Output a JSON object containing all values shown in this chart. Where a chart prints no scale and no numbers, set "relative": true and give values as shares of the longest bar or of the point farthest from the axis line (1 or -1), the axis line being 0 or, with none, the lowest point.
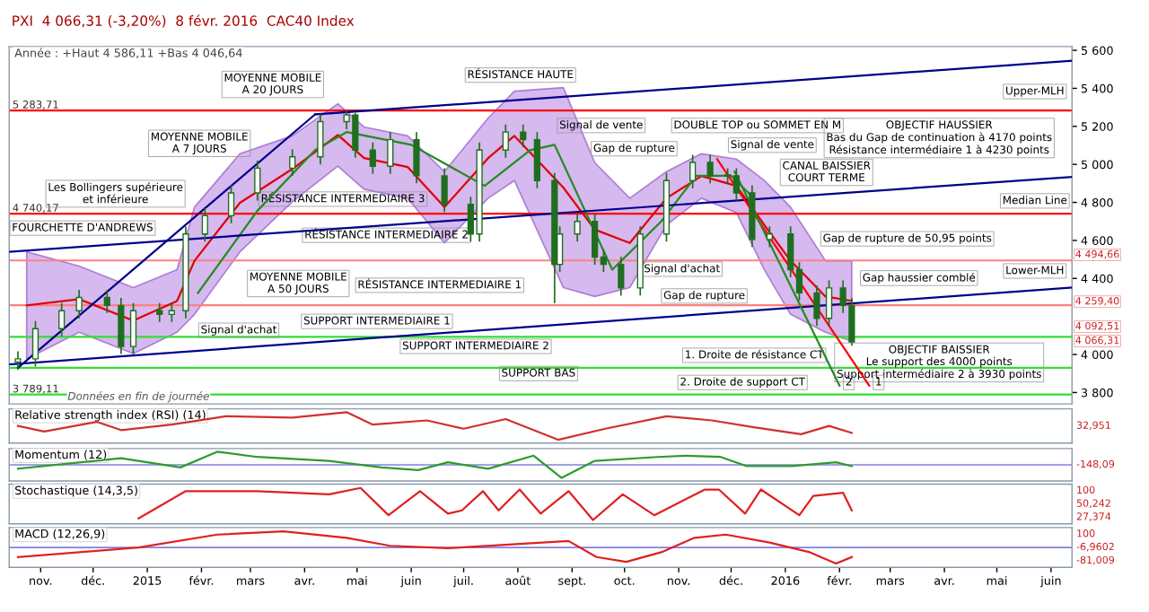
{
  "chart_data": [
    {
      "type": "candlestick",
      "title": "PXI  4 066,31 (-3,20%)  8 févr. 2016  CAC40 Index",
      "subtitle": "Année : +Haut 4 586,11 +Bas 4 046,64",
      "color": "#1f6e1f",
      "x": [
        "2014-10-19",
        "2014-10-29",
        "2014-11-13",
        "2014-11-23",
        "2014-12-09",
        "2014-12-17",
        "2014-12-24",
        "2015-01-08",
        "2015-01-15",
        "2015-01-23",
        "2015-02-03",
        "2015-02-18",
        "2015-03-05",
        "2015-03-25",
        "2015-04-10",
        "2015-04-25",
        "2015-04-30",
        "2015-05-10",
        "2015-05-20",
        "2015-06-04",
        "2015-06-20",
        "2015-07-05",
        "2015-07-10",
        "2015-07-25",
        "2015-08-04",
        "2015-08-12",
        "2015-08-22",
        "2015-08-25",
        "2015-09-04",
        "2015-09-14",
        "2015-09-19",
        "2015-09-29",
        "2015-10-10",
        "2015-10-25",
        "2015-11-09",
        "2015-11-19",
        "2015-11-29",
        "2015-12-04",
        "2015-12-13",
        "2015-12-23",
        "2016-01-04",
        "2016-01-09",
        "2016-01-19",
        "2016-01-26",
        "2016-02-03",
        "2016-02-08"
      ],
      "ohlc": [
        [
          3960,
          4017,
          3920,
          3977
        ],
        [
          3977,
          4176,
          3937,
          4136
        ],
        [
          4136,
          4270,
          4096,
          4230
        ],
        [
          4230,
          4340,
          4190,
          4300
        ],
        [
          4300,
          4340,
          4218,
          4258
        ],
        [
          4258,
          4298,
          4002,
          4042
        ],
        [
          4042,
          4270,
          4002,
          4230
        ],
        [
          4230,
          4270,
          4171,
          4211
        ],
        [
          4211,
          4270,
          4171,
          4230
        ],
        [
          4230,
          4674,
          4190,
          4634
        ],
        [
          4634,
          4770,
          4594,
          4730
        ],
        [
          4730,
          4890,
          4690,
          4850
        ],
        [
          4850,
          5020,
          4810,
          4980
        ],
        [
          4980,
          5080,
          4940,
          5040
        ],
        [
          5040,
          5265,
          5000,
          5225
        ],
        [
          5225,
          5283.71,
          5185,
          5260
        ],
        [
          5260,
          5270,
          5035,
          5075
        ],
        [
          5075,
          5115,
          4950,
          4990
        ],
        [
          4990,
          5170,
          4950,
          5130
        ],
        [
          5130,
          5170,
          4900,
          4940
        ],
        [
          4940,
          4980,
          4750,
          4790
        ],
        [
          4790,
          4830,
          4594,
          4634
        ],
        [
          4634,
          5115,
          4594,
          5075
        ],
        [
          5075,
          5210,
          5035,
          5170
        ],
        [
          5170,
          5210,
          5090,
          5130
        ],
        [
          5130,
          5170,
          4875,
          4915
        ],
        [
          4915,
          4955,
          4270,
          4474
        ],
        [
          4474,
          4674,
          4434,
          4634
        ],
        [
          4634,
          4740,
          4594,
          4700
        ],
        [
          4700,
          4740,
          4472,
          4512
        ],
        [
          4512,
          4552,
          4434,
          4474
        ],
        [
          4474,
          4514,
          4310,
          4350
        ],
        [
          4350,
          4674,
          4310,
          4634
        ],
        [
          4634,
          4955,
          4594,
          4915
        ],
        [
          4915,
          5050,
          4875,
          5010
        ],
        [
          5010,
          5050,
          4900,
          4940
        ],
        [
          4940,
          4980,
          4900,
          4940
        ],
        [
          4940,
          4980,
          4810,
          4850
        ],
        [
          4850,
          4890,
          4565,
          4605
        ],
        [
          4605,
          4674,
          4565,
          4634
        ],
        [
          4634,
          4674,
          4406,
          4446
        ],
        [
          4446,
          4486,
          4284,
          4324
        ],
        [
          4324,
          4364,
          4150,
          4190
        ],
        [
          4190,
          4390,
          4150,
          4350
        ],
        [
          4350,
          4390,
          4218,
          4258
        ],
        [
          4258,
          4298,
          4046.64,
          4066
        ]
      ],
      "series": [
        {
          "type": "line",
          "color": "#e00000",
          "x": [
            "2014-10-24",
            "2014-11-23",
            "2014-12-24",
            "2015-01-18",
            "2015-01-28",
            "2015-02-23",
            "2015-03-25",
            "2015-04-20",
            "2015-05-05",
            "2015-05-30",
            "2015-06-20",
            "2015-07-15",
            "2015-07-30",
            "2015-08-27",
            "2015-09-14",
            "2015-10-04",
            "2015-10-25",
            "2015-11-14",
            "2015-12-04",
            "2015-12-20",
            "2016-01-04",
            "2016-01-24",
            "2016-02-08"
          ],
          "values": [
            4258,
            4291,
            4178,
            4281,
            4493,
            4798,
            4976,
            5155,
            5033,
            4986,
            4775,
            5033,
            5150,
            4878,
            4657,
            4587,
            4822,
            4939,
            4887,
            4681,
            4493,
            4305,
            4282
          ],
          "lower": [
            3977,
            4117,
            4005,
            4117,
            4211,
            4540,
            4803,
            4991,
            4869,
            4822,
            4587,
            4822,
            4915,
            4352,
            4305,
            4352,
            4681,
            4822,
            4746,
            4446,
            4211,
            4117,
            4070
          ],
          "upper": [
            4540,
            4465,
            4352,
            4446,
            4775,
            5056,
            5150,
            5319,
            5197,
            5150,
            4962,
            5244,
            5385,
            5404,
            5009,
            4822,
            4962,
            5056,
            5028,
            4915,
            4775,
            4493,
            4493
          ]
        },
        {
          "type": "line",
          "color": "#228b22",
          "x": [
            "2015-01-30",
            "2015-03-05",
            "2015-04-07",
            "2015-04-25",
            "2015-06-01",
            "2015-07-13",
            "2015-08-08",
            "2015-08-22",
            "2015-09-24",
            "2015-10-22",
            "2015-11-11",
            "2015-12-01",
            "2015-12-14"
          ],
          "values": [
            4324,
            4756,
            5075,
            5170,
            5103,
            4887,
            5075,
            5103,
            4446,
            4700,
            4940,
            4940,
            4822
          ]
        },
        {
          "type": "line",
          "color": "#00008b",
          "x": [
            "2015-04-07",
            "2016-06-13"
          ],
          "values": [
            5263,
            5545
          ]
        },
        {
          "type": "line",
          "color": "#00008b",
          "x": [
            "2014-10-14",
            "2016-06-13"
          ],
          "values": [
            4540,
            4934
          ]
        },
        {
          "type": "line",
          "color": "#00008b",
          "x": [
            "2014-10-14",
            "2016-06-13"
          ],
          "values": [
            3948,
            4352
          ]
        },
        {
          "type": "line",
          "color": "#00008b",
          "x": [
            "2014-10-19",
            "2015-04-07"
          ],
          "values": [
            3930,
            5263
          ]
        },
        {
          "type": "line",
          "color": "#ff0000",
          "x": [
            "2015-11-23",
            "2016-02-18"
          ],
          "values": [
            5028,
            3836
          ]
        },
        {
          "type": "line",
          "color": "#228b22",
          "x": [
            "2015-12-03",
            "2016-02-01"
          ],
          "values": [
            4962,
            3836
          ]
        }
      ],
      "xlim": [
        "2014-10-14",
        "2016-06-13"
      ],
      "ylim": [
        3740,
        5620
      ],
      "yticks": [
        {
          "value": 3800,
          "label": "3 800"
        },
        {
          "value": 4000,
          "label": "4 000"
        },
        {
          "value": 4400,
          "label": "4 400"
        },
        {
          "value": 4600,
          "label": "4 600"
        },
        {
          "value": 4800,
          "label": "4 800"
        },
        {
          "value": 5000,
          "label": "5 000"
        },
        {
          "value": 5200,
          "label": "5 200"
        },
        {
          "value": 5400,
          "label": "5 400"
        },
        {
          "value": 5600,
          "label": "5 600"
        }
      ],
      "tick_labels": "y",
      "ref_lines": [
        {
          "axis": "y",
          "value": 5283.71,
          "label": "5 283,71",
          "color": "#ff0000"
        },
        {
          "axis": "y",
          "value": 4740.17,
          "label": "4 740,17",
          "color": "#ff0000"
        },
        {
          "axis": "y",
          "value": 4494.66,
          "label": null,
          "color": "#ff8080"
        },
        {
          "axis": "y",
          "value": 4259.4,
          "label": null,
          "color": "#ff8080"
        },
        {
          "axis": "y",
          "value": 4092.51,
          "label": null,
          "color": "#33dd33"
        },
        {
          "axis": "y",
          "value": 3930,
          "label": null,
          "color": "#33dd33"
        },
        {
          "axis": "y",
          "value": 3789.11,
          "label": "3 789,11",
          "color": "#33dd33"
        }
      ],
      "annotations": [
        "Données en fin de journée",
        "4 494,66",
        "4 259,40",
        "4 092,51",
        "4 066,31",
        "MOYENNE MOBILE\nA 20 JOURS",
        "MOYENNE MOBILE\nA 7 JOURS",
        "Les Bollingers supérieure\net inférieure",
        "FOURCHETTE D'ANDREWS",
        "MOYENNE MOBILE\nA 50 JOURS",
        "Signal d'achat",
        "RÉSISTANCE HAUTE",
        "RÉSISTANCE INTERMEDIAIRE 3",
        "RÉSISTANCE INTERMEDIAIRE 2",
        "RÉSISTANCE INTERMEDIAIRE 1",
        "SUPPORT INTERMEDIAIRE 1",
        "SUPPORT INTERMEDIAIRE 2",
        "SUPPORT BAS",
        "Signal de vente",
        "Gap de rupture",
        "DOUBLE TOP ou SOMMET EN M",
        "Signal de vente",
        "CANAL BAISSIER\nCOURT TERME",
        "OBJECTIF HAUSSIER\nBas du Gap de continuation à 4170 points\nRésistance intermédiaire 1 à 4230 points",
        "Upper-MLH",
        "Median Line",
        "Lower-MLH",
        "Gap de rupture de 50,95 points",
        "Signal d'achat",
        "Gap de rupture",
        "Gap haussier comblé",
        "OBJECTIF BAISSIER\nLe support des 4000 points\nSupport intermédiaire 2 à 3930 points",
        "1. Droite de résistance CT",
        "2. Droite de support CT",
        "2",
        "1"
      ]
    },
    {
      "type": "line",
      "title": "Relative strength index (RSI) (14)",
      "relative": true,
      "tick_labels": false,
      "xlim": [
        "2014-10-14",
        "2016-06-13"
      ],
      "series": [
        {
          "color": "#d03030",
          "x": [
            "2014-10-19",
            "2014-11-03",
            "2014-12-03",
            "2014-12-17",
            "2015-01-15",
            "2015-02-15",
            "2015-03-25",
            "2015-04-25",
            "2015-05-10",
            "2015-06-10",
            "2015-07-01",
            "2015-07-25",
            "2015-08-24",
            "2015-09-20",
            "2015-10-25",
            "2015-11-20",
            "2015-12-14",
            "2016-01-10",
            "2016-01-26",
            "2016-02-08"
          ],
          "values": [
            0.5,
            0.3,
            0.65,
            0.35,
            0.55,
            0.85,
            0.8,
            1.0,
            0.55,
            0.7,
            0.4,
            0.75,
            0.0,
            0.4,
            0.85,
            0.7,
            0.45,
            0.2,
            0.5,
            0.25
          ]
        }
      ],
      "annotations": [
        "32,951"
      ]
    },
    {
      "type": "line",
      "title": "Momentum (12)",
      "relative": true,
      "tick_labels": false,
      "xlim": [
        "2014-10-14",
        "2016-06-13"
      ],
      "series": [
        {
          "color": "#2e9b2e",
          "x": [
            "2014-10-19",
            "2014-12-17",
            "2015-01-20",
            "2015-02-10",
            "2015-03-05",
            "2015-04-15",
            "2015-05-15",
            "2015-06-05",
            "2015-06-22",
            "2015-07-15",
            "2015-08-10",
            "2015-08-26",
            "2015-09-14",
            "2015-10-20",
            "2015-11-05",
            "2015-11-25",
            "2015-12-10",
            "2016-01-05",
            "2016-01-30",
            "2016-02-08"
          ],
          "values": [
            -0.3,
            0.5,
            -0.2,
            1.0,
            0.6,
            0.3,
            -0.2,
            -0.4,
            0.2,
            -0.3,
            0.7,
            -1.0,
            0.3,
            0.6,
            0.7,
            0.6,
            -0.1,
            -0.1,
            0.2,
            -0.1
          ]
        }
      ],
      "ref_lines": [
        {
          "axis": "y",
          "value": 0,
          "label": null,
          "color": "#8080e0"
        }
      ],
      "annotations": [
        "-148,09"
      ]
    },
    {
      "type": "line",
      "title": "Stochastique (14,3,5)",
      "relative": true,
      "tick_labels": false,
      "xlim": [
        "2014-10-14",
        "2016-06-13"
      ],
      "series": [
        {
          "color": "#e02020",
          "x": [
            "2014-12-27",
            "2015-01-23",
            "2015-03-05",
            "2015-04-15",
            "2015-05-03",
            "2015-05-19",
            "2015-06-06",
            "2015-06-22",
            "2015-06-30",
            "2015-07-12",
            "2015-07-21",
            "2015-08-02",
            "2015-08-14",
            "2015-08-30",
            "2015-09-13",
            "2015-09-30",
            "2015-10-18",
            "2015-11-16",
            "2015-11-24",
            "2015-12-09",
            "2015-12-18",
            "2016-01-09",
            "2016-01-17",
            "2016-02-03",
            "2016-02-08"
          ],
          "values": [
            0.05,
            0.9,
            0.9,
            0.8,
            1.0,
            0.15,
            0.9,
            0.2,
            0.3,
            0.9,
            0.3,
            0.95,
            0.2,
            0.9,
            0.0,
            0.8,
            0.15,
            0.95,
            0.95,
            0.2,
            0.95,
            0.15,
            0.75,
            0.85,
            0.3
          ]
        }
      ],
      "annotations": [
        "100",
        "50,242",
        "27,374"
      ]
    },
    {
      "type": "line",
      "title": "MACD (12,26,9)",
      "relative": true,
      "tick_labels": "x",
      "xlim": [
        "2014-10-14",
        "2016-06-13"
      ],
      "xticks": [
        {
          "value": "2014-11-01",
          "label": "nov."
        },
        {
          "value": "2014-12-01",
          "label": "déc."
        },
        {
          "value": "2015-01-01",
          "label": "2015"
        },
        {
          "value": "2015-02-01",
          "label": "févr."
        },
        {
          "value": "2015-03-01",
          "label": "mars"
        },
        {
          "value": "2015-04-01",
          "label": "avr."
        },
        {
          "value": "2015-05-01",
          "label": "mai"
        },
        {
          "value": "2015-06-01",
          "label": "juin"
        },
        {
          "value": "2015-07-01",
          "label": "juil."
        },
        {
          "value": "2015-08-01",
          "label": "août"
        },
        {
          "value": "2015-09-01",
          "label": "sept."
        },
        {
          "value": "2015-10-01",
          "label": "oct."
        },
        {
          "value": "2015-11-01",
          "label": "nov."
        },
        {
          "value": "2015-12-01",
          "label": "déc."
        },
        {
          "value": "2016-01-01",
          "label": "2016"
        },
        {
          "value": "2016-02-01",
          "label": "févr."
        },
        {
          "value": "2016-03-01",
          "label": "mars"
        },
        {
          "value": "2016-04-01",
          "label": "avr."
        },
        {
          "value": "2016-05-01",
          "label": "mai"
        },
        {
          "value": "2016-06-01",
          "label": "juin"
        }
      ],
      "series": [
        {
          "color": "#e02020",
          "x": [
            "2014-10-19",
            "2014-12-27",
            "2015-02-10",
            "2015-03-20",
            "2015-04-25",
            "2015-05-20",
            "2015-06-22",
            "2015-08-30",
            "2015-09-15",
            "2015-10-02",
            "2015-10-22",
            "2015-11-10",
            "2015-11-28",
            "2015-12-23",
            "2016-01-15",
            "2016-01-30",
            "2016-02-08"
          ],
          "values": [
            -0.6,
            0.0,
            0.8,
            1.0,
            0.6,
            0.1,
            -0.05,
            0.4,
            -0.6,
            -0.9,
            -0.3,
            0.6,
            0.8,
            0.3,
            -0.3,
            -1.0,
            -0.6
          ]
        }
      ],
      "ref_lines": [
        {
          "axis": "y",
          "value": 0,
          "label": null,
          "color": "#8080e0"
        }
      ],
      "annotations": [
        "100",
        "-6,9602",
        "-81,009"
      ]
    }
  ]
}
